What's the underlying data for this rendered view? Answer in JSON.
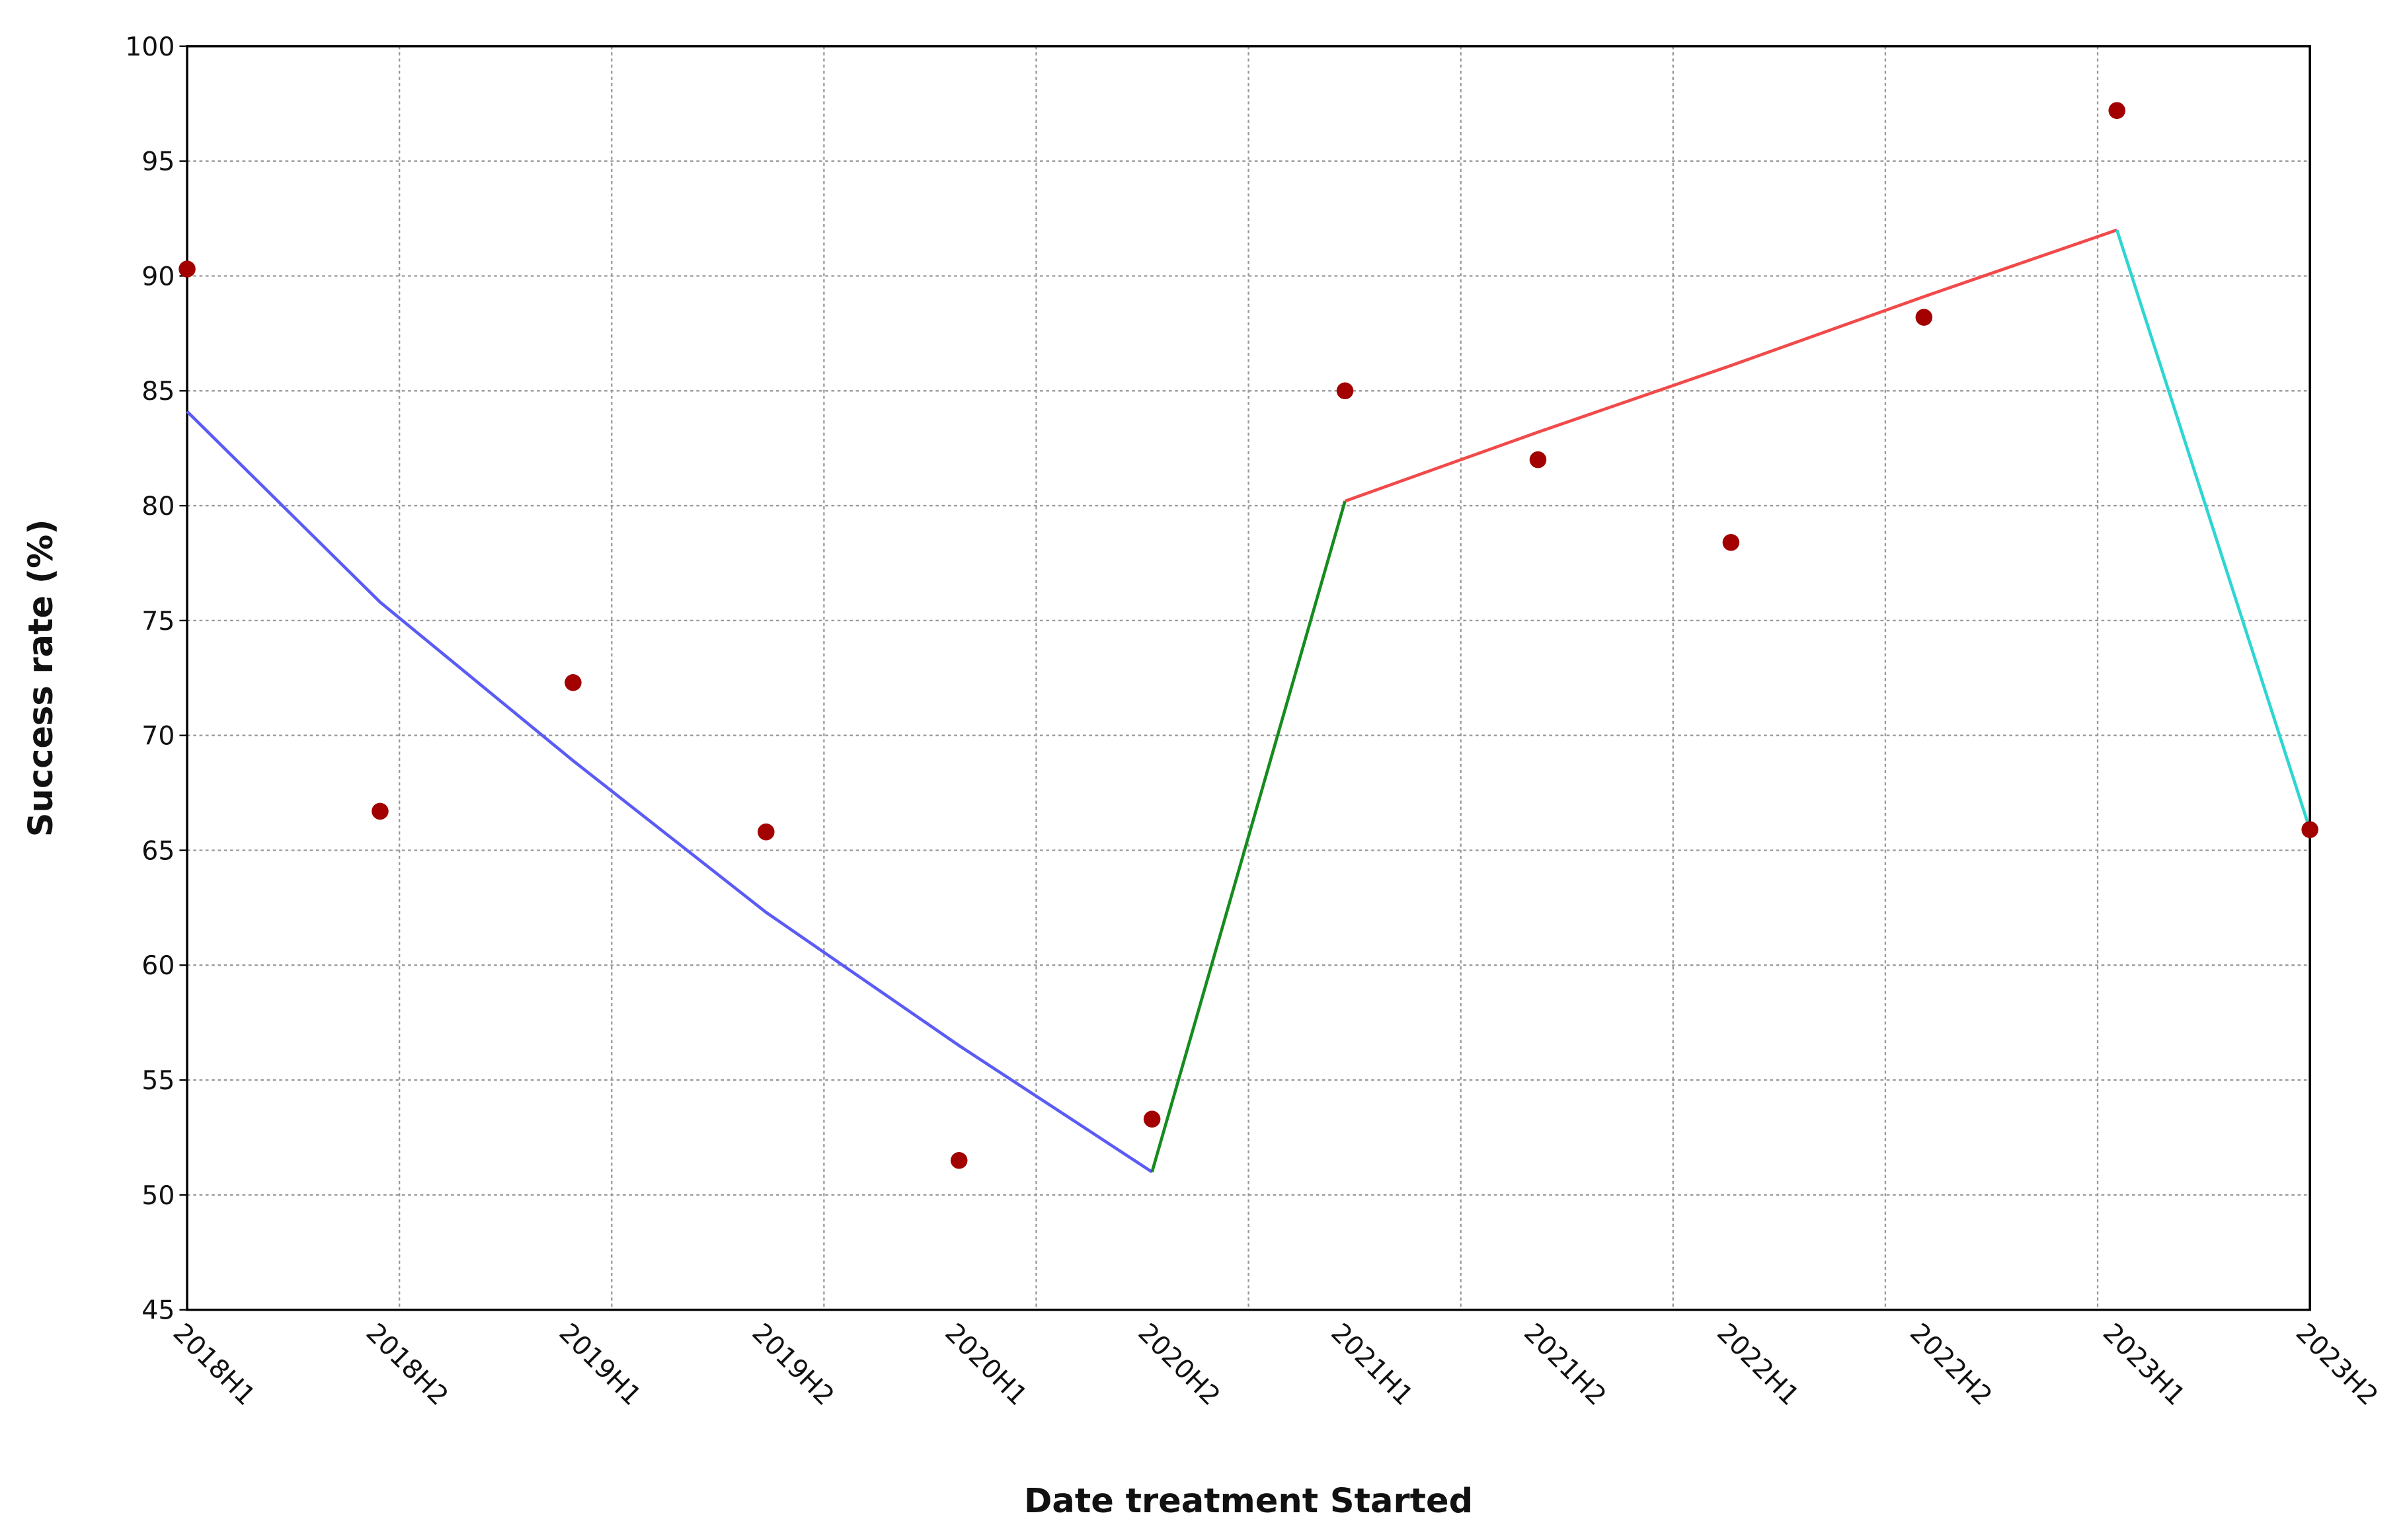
{
  "chart_data": {
    "type": "line",
    "x_label": "Date treatment Started",
    "y_label": "Success rate (%)",
    "categories": [
      "2018H1",
      "2018H2",
      "2019H1",
      "2019H2",
      "2020H1",
      "2020H2",
      "2021H1",
      "2021H2",
      "2022H1",
      "2022H2",
      "2023H1",
      "2023H2"
    ],
    "xlim": [
      0,
      11
    ],
    "xticks": [
      0,
      1.1,
      2.2,
      3.3,
      4.4,
      5.5,
      6.6,
      7.7,
      8.8,
      9.9,
      11
    ],
    "ylim": [
      45,
      100
    ],
    "yticks": [
      45,
      50,
      55,
      60,
      65,
      70,
      75,
      80,
      85,
      90,
      95,
      100
    ],
    "grid": true,
    "series": [
      {
        "type": "scatter",
        "color": "#a30000",
        "values": [
          90.3,
          66.7,
          72.3,
          65.8,
          51.5,
          53.3,
          85.0,
          82.0,
          78.4,
          88.2,
          97.2,
          65.9
        ]
      },
      {
        "type": "line",
        "color": "#5b5bf5",
        "values": [
          84.1,
          75.8,
          68.9,
          62.3,
          56.5,
          51.0,
          null,
          null,
          null,
          null,
          null,
          null
        ]
      },
      {
        "type": "line",
        "color": "#168b1f",
        "values": [
          null,
          null,
          null,
          null,
          null,
          51.0,
          80.2,
          null,
          null,
          null,
          null,
          null
        ]
      },
      {
        "type": "line",
        "color": "#f24a4a",
        "values": [
          null,
          null,
          null,
          null,
          null,
          null,
          80.2,
          83.2,
          86.1,
          89.1,
          92.0,
          null
        ]
      },
      {
        "type": "line",
        "color": "#2dd6d2",
        "values": [
          null,
          null,
          null,
          null,
          null,
          null,
          null,
          null,
          null,
          null,
          92.0,
          65.9
        ]
      }
    ]
  }
}
